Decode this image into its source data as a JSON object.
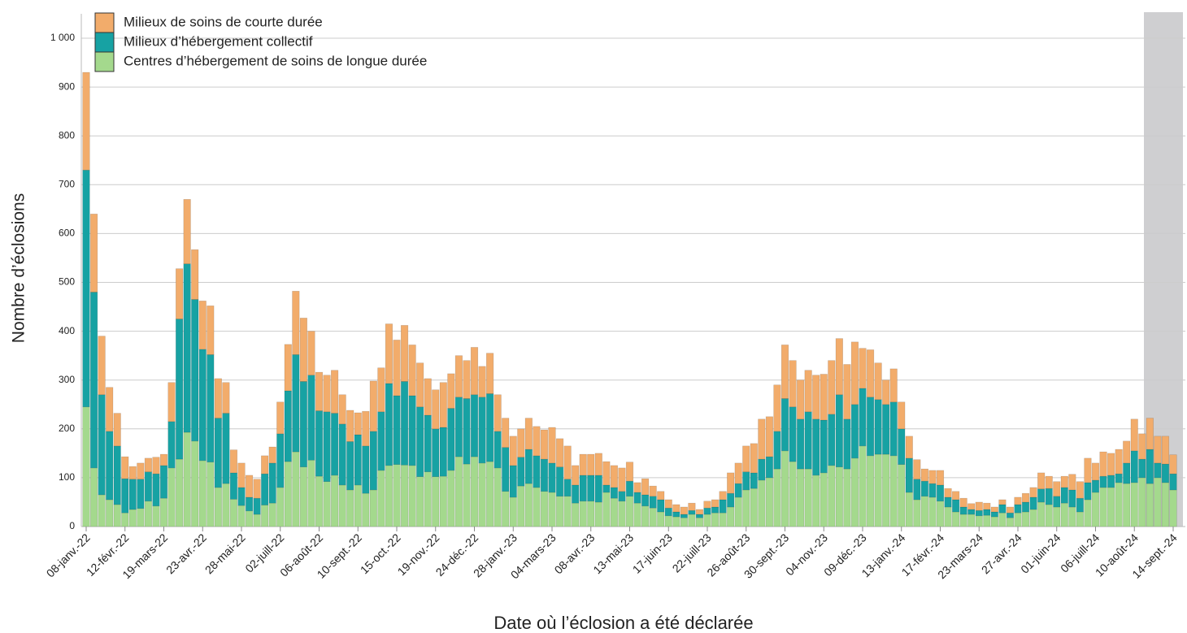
{
  "chart_data": {
    "type": "stacked_bar",
    "x_label": "Date où l’éclosion a été déclarée",
    "y_label": "Nombre d’éclosions",
    "categories": [
      "08-janv.-22",
      null,
      null,
      null,
      null,
      "12-févr.-22",
      null,
      null,
      null,
      null,
      "19-mars-22",
      null,
      null,
      null,
      null,
      "23-avr.-22",
      null,
      null,
      null,
      null,
      "28-mai-22",
      null,
      null,
      null,
      null,
      "02-juill-22",
      null,
      null,
      null,
      null,
      "06-août-22",
      null,
      null,
      null,
      null,
      "10-sept.-22",
      null,
      null,
      null,
      null,
      "15-oct.-22",
      null,
      null,
      null,
      null,
      "19-nov.-22",
      null,
      null,
      null,
      null,
      "24-déc.-22",
      null,
      null,
      null,
      null,
      "28-janv.-23",
      null,
      null,
      null,
      null,
      "04-mars-23",
      null,
      null,
      null,
      null,
      "08-avr.-23",
      null,
      null,
      null,
      null,
      "13-mai-23",
      null,
      null,
      null,
      null,
      "17-juin-23",
      null,
      null,
      null,
      null,
      "22-juill-23",
      null,
      null,
      null,
      null,
      "26-août-23",
      null,
      null,
      null,
      null,
      "30-sept.-23",
      null,
      null,
      null,
      null,
      "04-nov.-23",
      null,
      null,
      null,
      null,
      "09-déc.-23",
      null,
      null,
      null,
      null,
      "13-janv.-24",
      null,
      null,
      null,
      null,
      "17-févr.-24",
      null,
      null,
      null,
      null,
      "23-mars-24",
      null,
      null,
      null,
      null,
      "27-avr.-24",
      null,
      null,
      null,
      null,
      "01-juin-24",
      null,
      null,
      null,
      null,
      "06-juill-24",
      null,
      null,
      null,
      null,
      "10-août-24",
      null,
      null,
      null,
      null,
      "14-sept.-24"
    ],
    "series": [
      {
        "name": "Milieux de soins de courte durée",
        "color": "#f2ac6b",
        "values": [
          200,
          160,
          120,
          90,
          67,
          45,
          26,
          33,
          28,
          34,
          23,
          80,
          103,
          132,
          102,
          99,
          100,
          81,
          63,
          47,
          50,
          45,
          39,
          37,
          33,
          65,
          95,
          130,
          130,
          90,
          79,
          75,
          88,
          60,
          64,
          45,
          71,
          103,
          90,
          122,
          114,
          115,
          104,
          90,
          75,
          80,
          92,
          71,
          85,
          78,
          97,
          63,
          83,
          75,
          60,
          60,
          58,
          64,
          60,
          60,
          73,
          58,
          68,
          40,
          43,
          43,
          45,
          48,
          45,
          48,
          39,
          20,
          33,
          21,
          17,
          17,
          15,
          15,
          15,
          10,
          14,
          15,
          17,
          42,
          42,
          53,
          60,
          82,
          82,
          95,
          110,
          95,
          80,
          85,
          90,
          94,
          110,
          115,
          112,
          128,
          82,
          97,
          75,
          50,
          68,
          55,
          45,
          40,
          25,
          27,
          30,
          18,
          17,
          18,
          12,
          17,
          13,
          10,
          10,
          12,
          15,
          18,
          20,
          33,
          25,
          30,
          23,
          32,
          34,
          50,
          35,
          50,
          45,
          50,
          45,
          65,
          52,
          64,
          55,
          57,
          39
        ]
      },
      {
        "name": "Milieux d’hébergement collectif",
        "color": "#17a2a3",
        "values": [
          485,
          360,
          205,
          140,
          120,
          70,
          62,
          60,
          60,
          66,
          67,
          95,
          287,
          345,
          290,
          228,
          220,
          142,
          144,
          54,
          37,
          28,
          33,
          64,
          82,
          110,
          145,
          199,
          175,
          174,
          134,
          143,
          127,
          125,
          99,
          103,
          97,
          120,
          120,
          168,
          141,
          171,
          143,
          143,
          116,
          98,
          100,
          127,
          122,
          134,
          127,
          135,
          139,
          75,
          90,
          65,
          59,
          70,
          65,
          66,
          60,
          60,
          35,
          37,
          53,
          53,
          55,
          15,
          22,
          20,
          31,
          22,
          23,
          24,
          25,
          16,
          10,
          7,
          8,
          7,
          13,
          12,
          27,
          28,
          28,
          37,
          32,
          43,
          43,
          77,
          107,
          112,
          102,
          117,
          115,
          108,
          105,
          148,
          102,
          110,
          118,
          120,
          112,
          102,
          110,
          73,
          70,
          42,
          31,
          28,
          33,
          20,
          25,
          15,
          10,
          11,
          12,
          10,
          17,
          10,
          17,
          20,
          25,
          27,
          33,
          22,
          32,
          35,
          28,
          35,
          25,
          23,
          25,
          18,
          42,
          65,
          38,
          70,
          30,
          38,
          33
        ]
      },
      {
        "name": "Centres d’hébergement de soins de longue durée",
        "color": "#a4d98d",
        "values": [
          245,
          120,
          65,
          55,
          45,
          28,
          35,
          37,
          52,
          42,
          58,
          120,
          138,
          193,
          175,
          135,
          132,
          80,
          88,
          56,
          43,
          32,
          25,
          44,
          48,
          80,
          133,
          153,
          122,
          136,
          103,
          92,
          105,
          85,
          75,
          85,
          68,
          75,
          115,
          125,
          127,
          126,
          125,
          102,
          112,
          102,
          103,
          115,
          143,
          128,
          143,
          130,
          133,
          120,
          72,
          60,
          83,
          88,
          80,
          72,
          70,
          62,
          62,
          48,
          52,
          52,
          50,
          70,
          58,
          52,
          62,
          48,
          42,
          38,
          30,
          22,
          20,
          18,
          25,
          18,
          25,
          28,
          28,
          40,
          60,
          75,
          78,
          95,
          100,
          118,
          155,
          133,
          118,
          118,
          105,
          110,
          125,
          122,
          118,
          140,
          165,
          145,
          148,
          148,
          145,
          127,
          70,
          55,
          62,
          60,
          52,
          40,
          30,
          25,
          25,
          22,
          23,
          20,
          28,
          18,
          28,
          30,
          35,
          50,
          45,
          40,
          48,
          40,
          30,
          55,
          70,
          80,
          80,
          90,
          88,
          90,
          100,
          88,
          100,
          90,
          75
        ]
      }
    ],
    "ylim": [
      0,
      1050
    ],
    "yticks": [
      0,
      100,
      200,
      300,
      400,
      500,
      600,
      700,
      800,
      900,
      {
        "value": 1000,
        "label": "1 000"
      }
    ],
    "grid": true
  }
}
